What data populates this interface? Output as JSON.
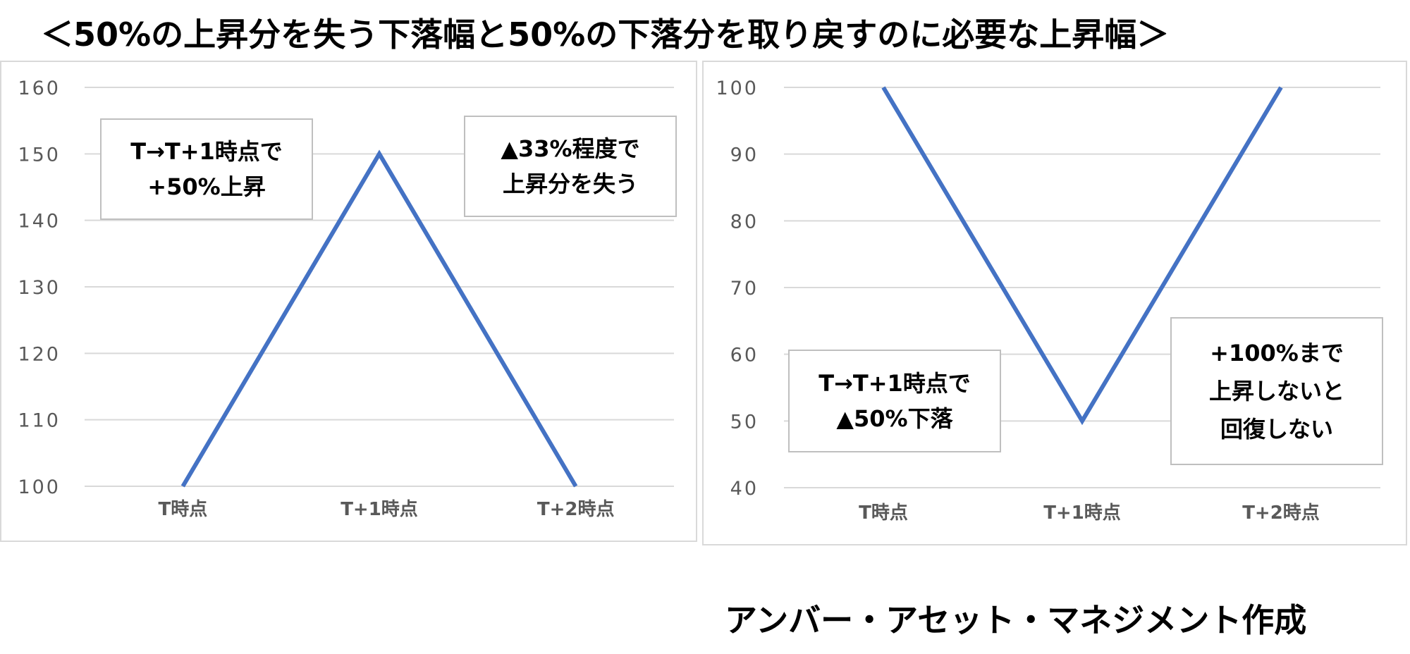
{
  "title": "＜50%の上昇分を失う下落幅と50%の下落分を取り戻すのに必要な上昇幅＞",
  "credit": "アンバー・アセット・マネジメント作成",
  "colors": {
    "line": "#4472C4",
    "grid": "#d9d9d9",
    "tick_text": "#595959"
  },
  "chart_data": [
    {
      "type": "line",
      "categories": [
        "T時点",
        "T+1時点",
        "T+2時点"
      ],
      "values": [
        100,
        150,
        100
      ],
      "ylim": [
        100,
        160
      ],
      "yticks": [
        100,
        110,
        120,
        130,
        140,
        150,
        160
      ],
      "ytick_labels": [
        "100",
        "110",
        "120",
        "130",
        "140",
        "150",
        "160"
      ],
      "grid": true,
      "annotations": [
        {
          "lines": [
            "T→T+1時点で",
            "+50%上昇"
          ]
        },
        {
          "lines": [
            "▲33%程度で",
            "上昇分を失う"
          ]
        }
      ]
    },
    {
      "type": "line",
      "categories": [
        "T時点",
        "T+1時点",
        "T+2時点"
      ],
      "values": [
        100,
        50,
        100
      ],
      "ylim": [
        40,
        100
      ],
      "yticks": [
        40,
        50,
        60,
        70,
        80,
        90,
        100
      ],
      "ytick_labels": [
        "40",
        "50",
        "60",
        "70",
        "80",
        "90",
        "100"
      ],
      "grid": true,
      "annotations": [
        {
          "lines": [
            "T→T+1時点で",
            "▲50%下落"
          ]
        },
        {
          "lines": [
            "+100%まで",
            "上昇しないと",
            "回復しない"
          ]
        }
      ]
    }
  ]
}
